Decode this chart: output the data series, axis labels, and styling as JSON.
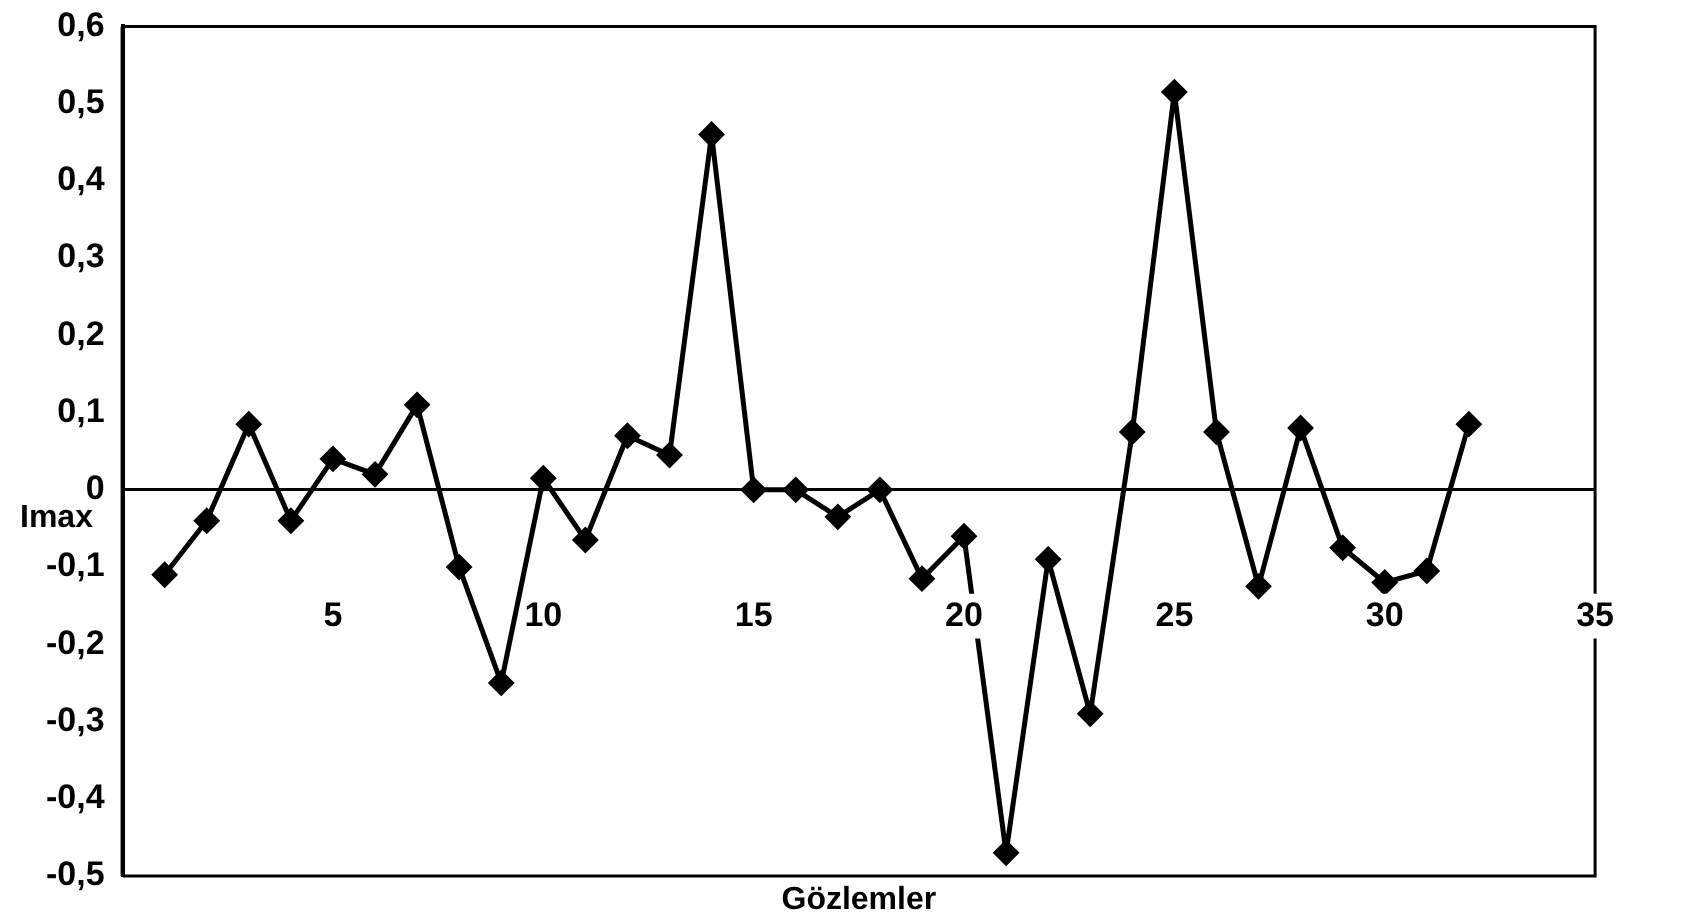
{
  "chart_data": {
    "type": "line",
    "xlabel": "Gözlemler",
    "ylabel": "Imax",
    "x": [
      1,
      2,
      3,
      4,
      5,
      6,
      7,
      8,
      9,
      10,
      11,
      12,
      13,
      14,
      15,
      16,
      17,
      18,
      19,
      20,
      21,
      22,
      23,
      24,
      25,
      26,
      27,
      28,
      29,
      30,
      31,
      32
    ],
    "series": [
      {
        "color": "#000000",
        "values": [
          -0.11,
          -0.04,
          0.085,
          -0.04,
          0.04,
          0.02,
          0.11,
          -0.1,
          -0.25,
          0.015,
          -0.065,
          0.07,
          0.045,
          0.46,
          0,
          0,
          -0.035,
          0,
          -0.115,
          -0.06,
          -0.47,
          -0.09,
          -0.29,
          0.075,
          0.515,
          0.075,
          -0.125,
          0.08,
          -0.075,
          -0.12,
          -0.105,
          0.085
        ]
      }
    ],
    "xlim": [
      0,
      35
    ],
    "xticks": [
      5,
      10,
      15,
      20,
      25,
      30,
      35
    ],
    "ylim": [
      -0.5,
      0.6
    ],
    "yticks": [
      {
        "value": -0.5,
        "label": "-0,5"
      },
      {
        "value": -0.4,
        "label": "-0,4"
      },
      {
        "value": -0.3,
        "label": "-0,3"
      },
      {
        "value": -0.2,
        "label": "-0,2"
      },
      {
        "value": -0.1,
        "label": "-0,1"
      },
      0,
      {
        "value": 0.1,
        "label": "0,1"
      },
      {
        "value": 0.2,
        "label": "0,2"
      },
      {
        "value": 0.3,
        "label": "0,3"
      },
      {
        "value": 0.4,
        "label": "0,4"
      },
      {
        "value": 0.5,
        "label": "0,5"
      },
      {
        "value": 0.6,
        "label": "0,6"
      }
    ],
    "legend": false,
    "marker": "diamond",
    "line_style": "solid"
  }
}
